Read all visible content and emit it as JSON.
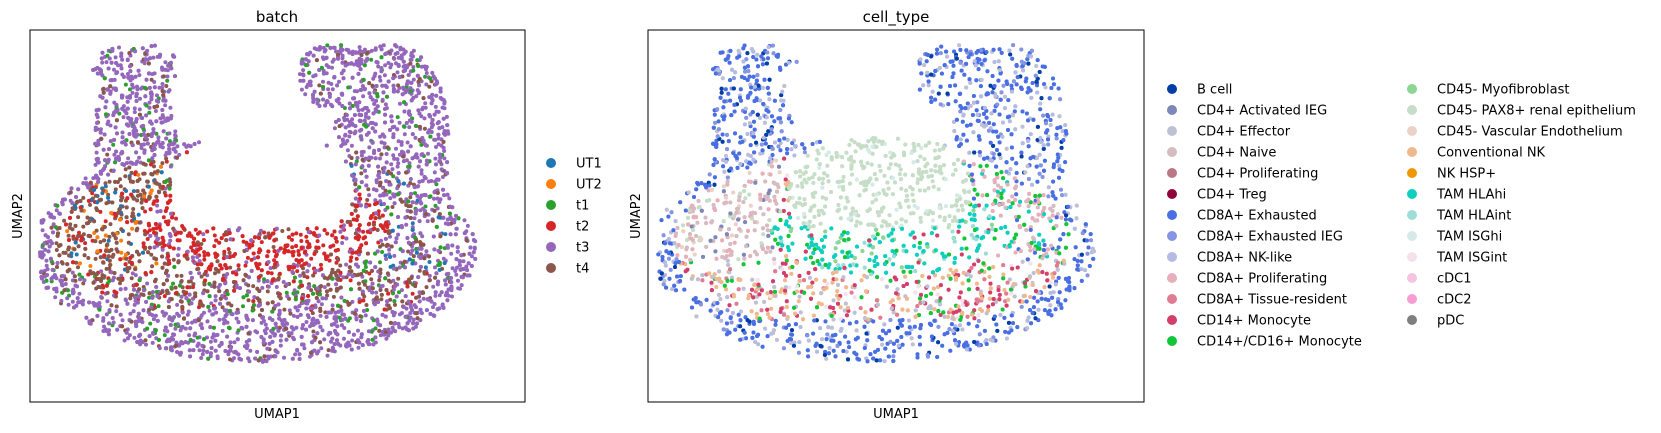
{
  "chart_data": [
    {
      "type": "scatter",
      "title": "batch",
      "xlabel": "UMAP1",
      "ylabel": "UMAP2",
      "grid": false,
      "legend_position": "right",
      "legend": [
        {
          "label": "UT1",
          "color": "#1f77b4"
        },
        {
          "label": "UT2",
          "color": "#ff7f0e"
        },
        {
          "label": "t1",
          "color": "#2ca02c"
        },
        {
          "label": "t2",
          "color": "#d62728"
        },
        {
          "label": "t3",
          "color": "#9467bd"
        },
        {
          "label": "t4",
          "color": "#8c564b"
        }
      ]
    },
    {
      "type": "scatter",
      "title": "cell_type",
      "xlabel": "UMAP1",
      "ylabel": "UMAP2",
      "grid": false,
      "legend_position": "right",
      "legend": [
        {
          "label": "B cell",
          "color": "#023fa5"
        },
        {
          "label": "CD4+ Activated IEG",
          "color": "#7d87b9"
        },
        {
          "label": "CD4+ Effector",
          "color": "#bec1d4"
        },
        {
          "label": "CD4+ Naive",
          "color": "#d6bcc0"
        },
        {
          "label": "CD4+ Proliferating",
          "color": "#bb7784"
        },
        {
          "label": "CD4+ Treg",
          "color": "#8e063b"
        },
        {
          "label": "CD8A+ Exhausted",
          "color": "#4a6fe3"
        },
        {
          "label": "CD8A+ Exhausted IEG",
          "color": "#8595e1"
        },
        {
          "label": "CD8A+ NK-like",
          "color": "#b5bbe3"
        },
        {
          "label": "CD8A+ Proliferating",
          "color": "#e6afb9"
        },
        {
          "label": "CD8A+ Tissue-resident",
          "color": "#e07b91"
        },
        {
          "label": "CD14+ Monocyte",
          "color": "#d33f6a"
        },
        {
          "label": "CD14+/CD16+ Monocyte",
          "color": "#11c638"
        },
        {
          "label": "CD45- Myofibroblast",
          "color": "#8dd593"
        },
        {
          "label": "CD45- PAX8+ renal epithelium",
          "color": "#c6dec7"
        },
        {
          "label": "CD45- Vascular Endothelium",
          "color": "#ead3c6"
        },
        {
          "label": "Conventional NK",
          "color": "#f0b98d"
        },
        {
          "label": "NK HSP+",
          "color": "#ef9708"
        },
        {
          "label": "TAM HLAhi",
          "color": "#0fcfc0"
        },
        {
          "label": "TAM HLAint",
          "color": "#9cded6"
        },
        {
          "label": "TAM ISGhi",
          "color": "#d5eae7"
        },
        {
          "label": "TAM ISGint",
          "color": "#f3e1eb"
        },
        {
          "label": "cDC1",
          "color": "#f6c4e1"
        },
        {
          "label": "cDC2",
          "color": "#f79cd4"
        },
        {
          "label": "pDC",
          "color": "#7f7f7f"
        }
      ]
    }
  ]
}
